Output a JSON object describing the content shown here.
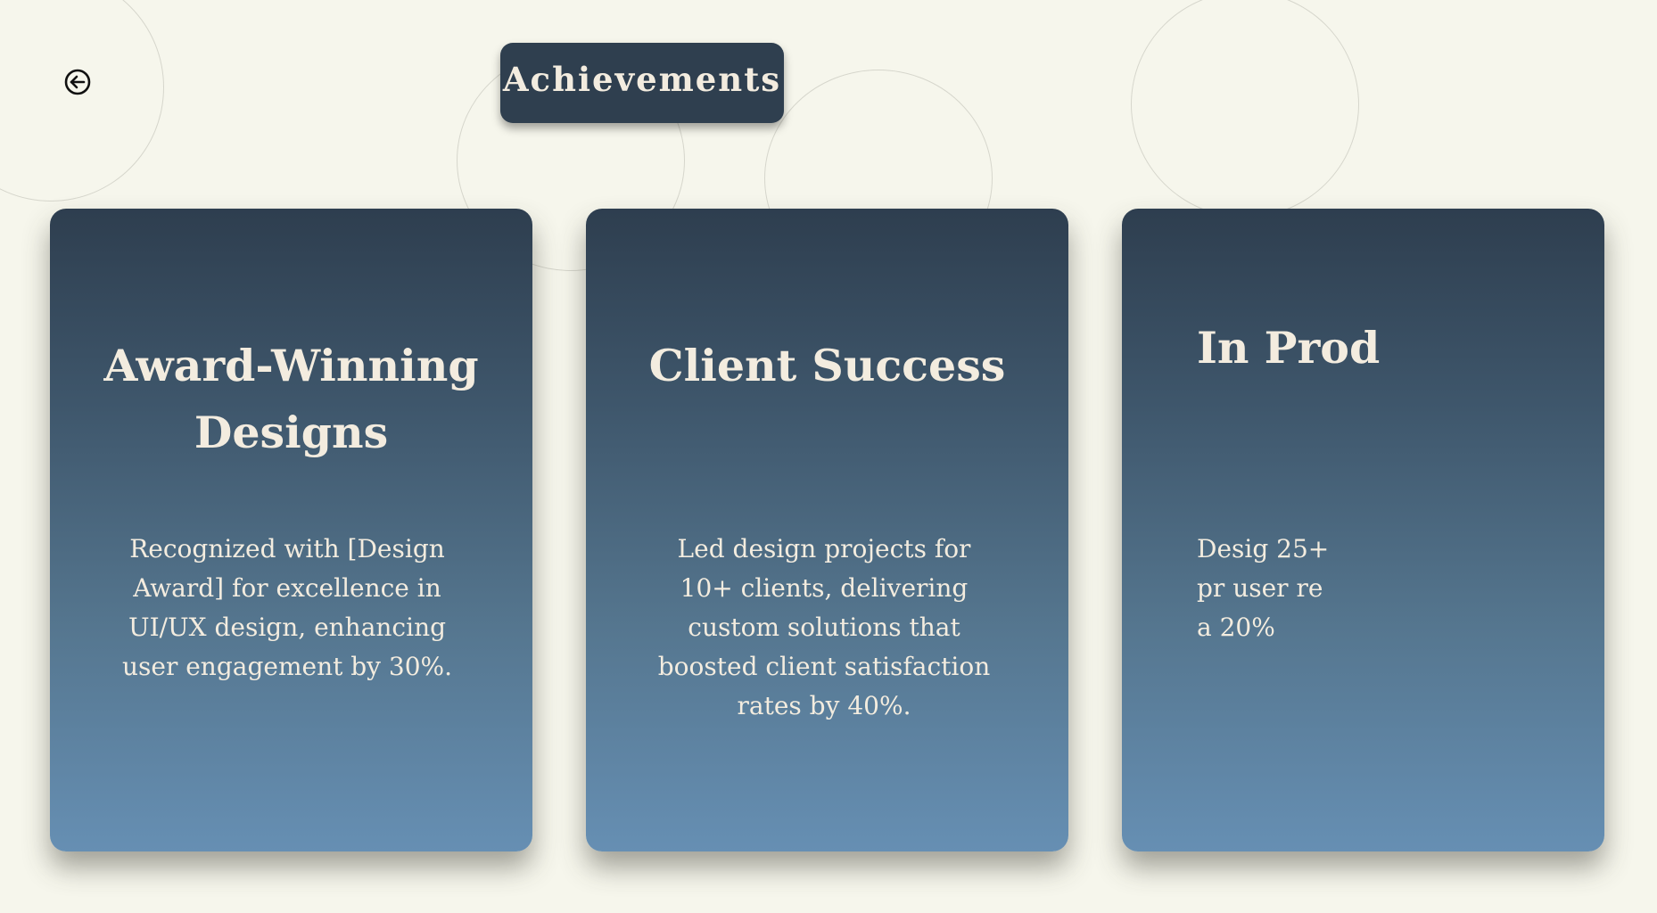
{
  "header": {
    "title": "Achievements",
    "back_icon": "arrow-left-circle-icon"
  },
  "cards": [
    {
      "title": "Award-Winning Designs",
      "description": "Recognized with [Design Award] for excellence in UI/UX design, enhancing user engagement by 30%."
    },
    {
      "title": "Client Success",
      "description": "Led design projects for 10+ clients, delivering custom solutions that boosted client satisfaction rates by 40%."
    },
    {
      "title": "In Prod",
      "description": "Desig 25+ pr user re a 20%"
    }
  ],
  "colors": {
    "background": "#f6f6ec",
    "card_top": "#2e3e4f",
    "card_bottom": "#668fb3",
    "text_light": "#f3ecdf"
  }
}
